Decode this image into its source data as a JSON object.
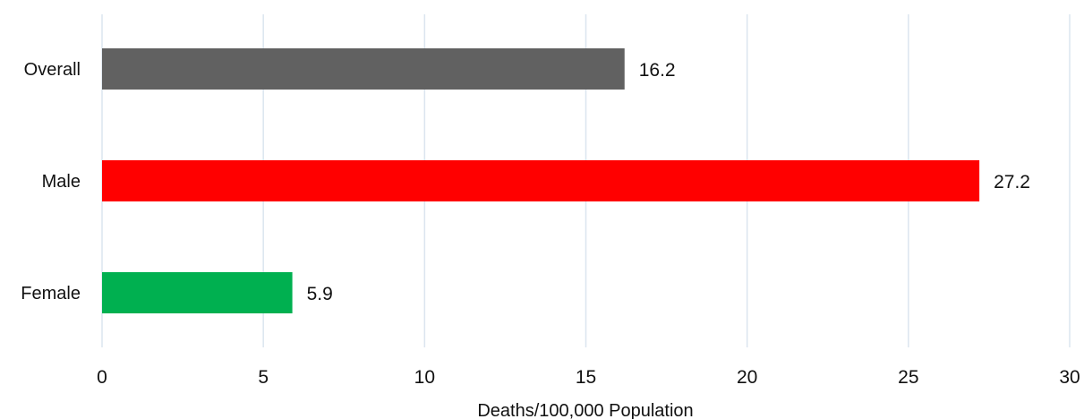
{
  "chart_data": {
    "type": "bar",
    "orientation": "horizontal",
    "categories": [
      "Overall",
      "Male",
      "Female"
    ],
    "values": [
      16.2,
      27.2,
      5.9
    ],
    "data_labels": [
      "16.2",
      "27.2",
      "5.9"
    ],
    "colors": [
      "#616161",
      "#ff0000",
      "#00b050"
    ],
    "xlabel": "Deaths/100,000 Population",
    "xlim": [
      0,
      30
    ],
    "xticks": [
      0,
      5,
      10,
      15,
      20,
      25,
      30
    ],
    "xtick_labels": [
      "0",
      "5",
      "10",
      "15",
      "20",
      "25",
      "30"
    ],
    "grid": "vertical",
    "legend": "none"
  }
}
